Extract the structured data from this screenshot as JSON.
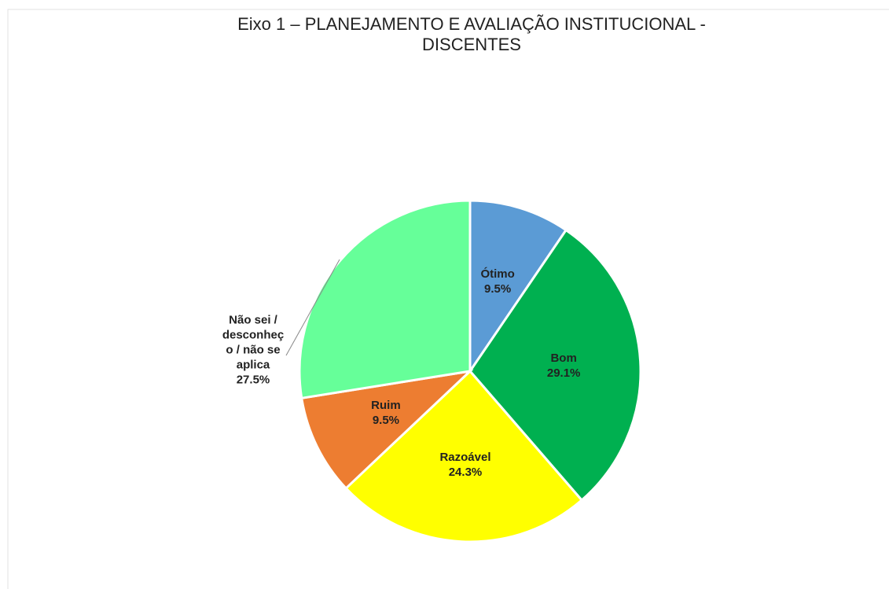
{
  "chart_data": {
    "type": "pie",
    "title": "Eixo 1 – PLANEJAMENTO E AVALIAÇÃO INSTITUCIONAL - DISCENTES",
    "categories": [
      "Ótimo",
      "Bom",
      "Razoável",
      "Ruim",
      "Não sei / desconheço / não se aplica"
    ],
    "values": [
      9.5,
      29.1,
      24.3,
      9.5,
      27.5
    ],
    "value_labels": [
      "9.5%",
      "29.1%",
      "24.3%",
      "9.5%",
      "27.5%"
    ],
    "colors": [
      "#5b9bd5",
      "#00b050",
      "#ffff00",
      "#ed7d31",
      "#66ff99"
    ]
  }
}
